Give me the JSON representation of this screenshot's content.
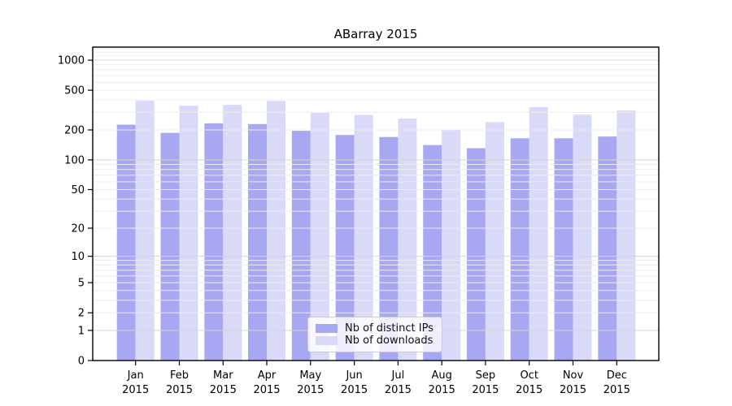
{
  "chart_data": {
    "type": "bar",
    "title": "ABarray 2015",
    "categories": [
      "Jan",
      "Feb",
      "Mar",
      "Apr",
      "May",
      "Jun",
      "Jul",
      "Aug",
      "Sep",
      "Oct",
      "Nov",
      "Dec"
    ],
    "year": "2015",
    "series": [
      {
        "name": "Nb of distinct IPs",
        "color": "#a8a8f2",
        "values": [
          226,
          187,
          233,
          229,
          196,
          178,
          170,
          141,
          131,
          165,
          165,
          172
        ]
      },
      {
        "name": "Nb of downloads",
        "color": "#d9d9f8",
        "values": [
          392,
          350,
          357,
          390,
          296,
          283,
          260,
          202,
          240,
          338,
          285,
          313
        ]
      }
    ],
    "yticks": [
      0,
      1,
      2,
      5,
      10,
      20,
      50,
      100,
      200,
      500,
      1000
    ],
    "scale": "log1p",
    "ylim": [
      0,
      1350
    ],
    "xlabel": "",
    "ylabel": "",
    "grid": {
      "orientation": "horizontal",
      "minor_color": "#ececec",
      "major_color": "#d5d5d5",
      "drawn_over_bars": true
    },
    "axis_color": "#000000",
    "background": "#ffffff",
    "legend": {
      "position": "lower-center-inside",
      "border_color": "#cccccc",
      "background": "rgba(255,255,255,0.8)"
    }
  }
}
